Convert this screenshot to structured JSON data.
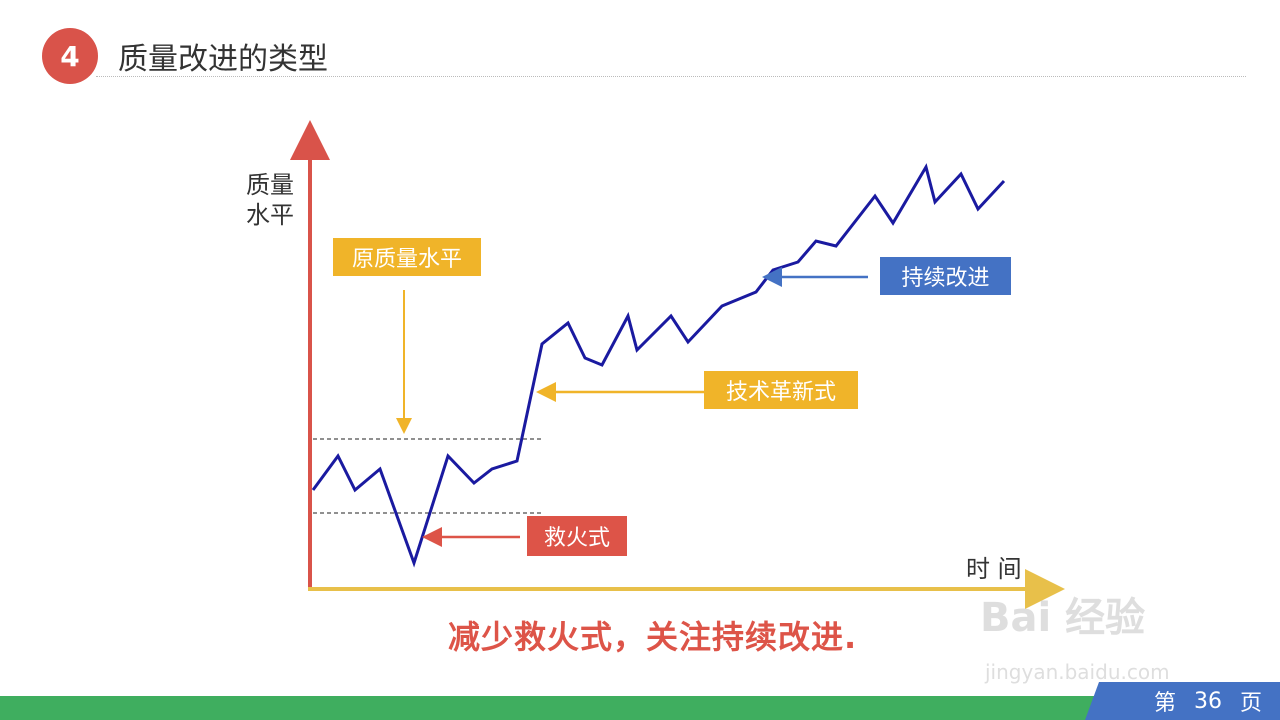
{
  "header": {
    "section_number": "4",
    "title": "质量改进的类型"
  },
  "diagram": {
    "y_axis_label_line1": "质量",
    "y_axis_label_line2": "水平",
    "x_axis_label": "时 间",
    "labels": {
      "original_level": "原质量水平",
      "firefighting": "救火式",
      "innovation": "技术革新式",
      "continuous": "持续改进"
    },
    "colors": {
      "line": "#1a1aa0",
      "y_axis": "#d9534a",
      "x_axis": "#e8c04a",
      "yellow": "#f0b429",
      "red": "#dd5448",
      "blue": "#4472c4"
    },
    "line_points": "313,490 338,456 355,490 380,469 414,563 448,456 474,483 492,469 517,461 542,344 568,323 585,358 602,365 628,316 637,350 671,316 688,342 722,306 756,292 773,270 798,262 816,241 836,246 875,196 893,223 926,167 935,202 961,174 978,209 1004,181"
  },
  "conclusion": "减少救火式，关注持续改进.",
  "footer": {
    "page_prefix": "第",
    "page_number": "36",
    "page_suffix": "页"
  },
  "watermark": {
    "brand": "Bai 经验",
    "url": "jingyan.baidu.com"
  }
}
